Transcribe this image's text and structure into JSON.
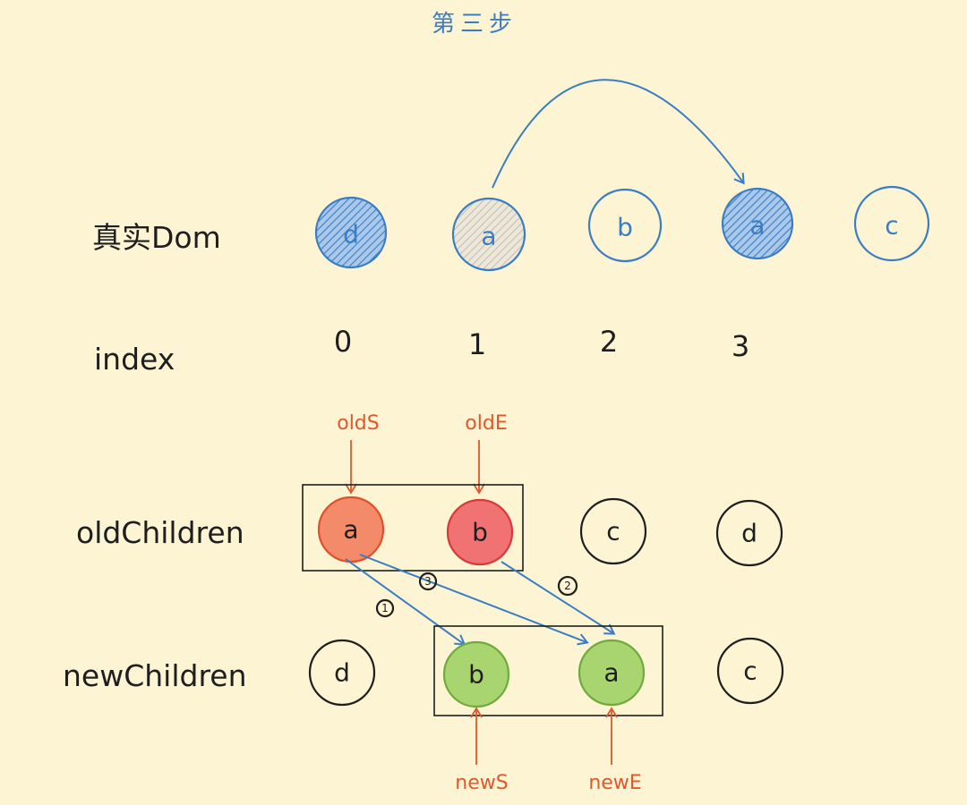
{
  "title": "第三步",
  "row_labels": {
    "real_dom": "真实Dom",
    "index": "index",
    "old_children": "oldChildren",
    "new_children": "newChildren"
  },
  "real_dom": [
    {
      "label": "d"
    },
    {
      "label": "a"
    },
    {
      "label": "b"
    },
    {
      "label": "a"
    },
    {
      "label": "c"
    }
  ],
  "index": [
    "0",
    "1",
    "2",
    "3"
  ],
  "old_children": [
    {
      "label": "a"
    },
    {
      "label": "b"
    },
    {
      "label": "c"
    },
    {
      "label": "d"
    }
  ],
  "new_children": [
    {
      "label": "d"
    },
    {
      "label": "b"
    },
    {
      "label": "a"
    },
    {
      "label": "c"
    }
  ],
  "pointers": {
    "old_start": "oldS",
    "old_end": "oldE",
    "new_start": "newS",
    "new_end": "newE"
  },
  "steps": {
    "one": "1",
    "two": "2",
    "three": "3"
  },
  "colors": {
    "background": "#fcf4d3",
    "real_dom_blue": "#3b7dc4",
    "pointer_orange": "#e2572b",
    "old_start_fill": "#f38a6a",
    "old_end_fill": "#f07272",
    "new_fill": "#a9d571"
  }
}
